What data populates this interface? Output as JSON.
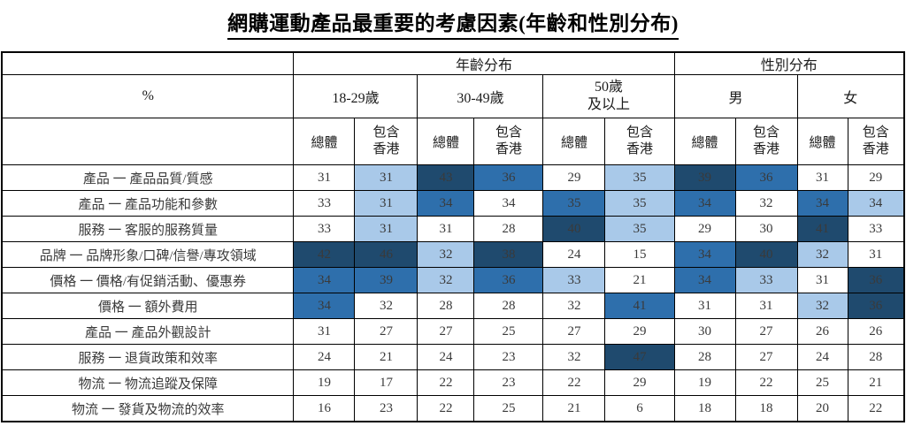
{
  "title": "網購運動產品最重要的考慮因素(年齡和性別分布)",
  "table": {
    "percent_label": "%",
    "group_headers": {
      "age": "年齡分布",
      "gender": "性別分布"
    },
    "age_groups": [
      "18-29歲",
      "30-49歲",
      "50歲\n及以上"
    ],
    "gender_groups": [
      "男",
      "女"
    ],
    "subheaders": {
      "total": "總體",
      "incl_hk": "包含\n香港"
    },
    "colors": {
      "dark": "#1F4A6E",
      "mid": "#2E6FAC",
      "light": "#A9C9E9",
      "white": "#FFFFFF"
    },
    "rows": [
      {
        "label": "產品 一 產品品質/質感",
        "values": [
          31,
          31,
          43,
          36,
          29,
          35,
          39,
          36,
          31,
          29
        ],
        "shades": [
          "w",
          "l",
          "d",
          "m",
          "w",
          "l",
          "d",
          "m",
          "w",
          "w"
        ]
      },
      {
        "label": "產品 一 產品功能和參數",
        "values": [
          33,
          31,
          34,
          34,
          35,
          35,
          34,
          32,
          34,
          34
        ],
        "shades": [
          "w",
          "l",
          "m",
          "w",
          "m",
          "l",
          "m",
          "w",
          "m",
          "l"
        ]
      },
      {
        "label": "服務 一 客服的服務質量",
        "values": [
          33,
          31,
          31,
          28,
          40,
          35,
          29,
          30,
          41,
          33
        ],
        "shades": [
          "w",
          "l",
          "w",
          "w",
          "d",
          "l",
          "w",
          "w",
          "d",
          "w"
        ]
      },
      {
        "label": "品牌 一 品牌形象/口碑/信譽/專攻領域",
        "values": [
          42,
          46,
          32,
          38,
          24,
          15,
          34,
          40,
          32,
          31
        ],
        "shades": [
          "d",
          "d",
          "l",
          "d",
          "w",
          "w",
          "m",
          "d",
          "l",
          "w"
        ]
      },
      {
        "label": "價格 一 價格/有促銷活動、優惠券",
        "values": [
          34,
          39,
          32,
          36,
          33,
          21,
          34,
          33,
          31,
          36
        ],
        "shades": [
          "m",
          "m",
          "l",
          "m",
          "l",
          "w",
          "m",
          "l",
          "w",
          "d"
        ]
      },
      {
        "label": "價格 一 額外費用",
        "values": [
          34,
          32,
          28,
          28,
          32,
          41,
          31,
          31,
          32,
          36
        ],
        "shades": [
          "m",
          "w",
          "w",
          "w",
          "w",
          "m",
          "w",
          "w",
          "l",
          "d"
        ]
      },
      {
        "label": "產品 一 產品外觀設計",
        "values": [
          31,
          27,
          27,
          25,
          27,
          29,
          30,
          27,
          26,
          26
        ],
        "shades": [
          "w",
          "w",
          "w",
          "w",
          "w",
          "w",
          "w",
          "w",
          "w",
          "w"
        ]
      },
      {
        "label": "服務 一 退貨政策和效率",
        "values": [
          24,
          21,
          24,
          23,
          32,
          47,
          28,
          27,
          24,
          28
        ],
        "shades": [
          "w",
          "w",
          "w",
          "w",
          "w",
          "d",
          "w",
          "w",
          "w",
          "w"
        ]
      },
      {
        "label": "物流 一 物流追蹤及保障",
        "values": [
          19,
          17,
          22,
          23,
          22,
          29,
          19,
          22,
          25,
          21
        ],
        "shades": [
          "w",
          "w",
          "w",
          "w",
          "w",
          "w",
          "w",
          "w",
          "w",
          "w"
        ]
      },
      {
        "label": "物流 一 發貨及物流的效率",
        "values": [
          16,
          23,
          22,
          25,
          21,
          6,
          18,
          18,
          20,
          22
        ],
        "shades": [
          "w",
          "w",
          "w",
          "w",
          "w",
          "w",
          "w",
          "w",
          "w",
          "w"
        ]
      }
    ]
  },
  "chart_data": {
    "type": "heatmap",
    "title": "網購運動產品最重要的考慮因素(年齡和性別分布)",
    "unit": "%",
    "column_groups": [
      "年齡分布: 18-29歲",
      "年齡分布: 18-29歲",
      "年齡分布: 30-49歲",
      "年齡分布: 30-49歲",
      "年齡分布: 50歲及以上",
      "年齡分布: 50歲及以上",
      "性別分布: 男",
      "性別分布: 男",
      "性別分布: 女",
      "性別分布: 女"
    ],
    "columns": [
      "18-29歲 總體",
      "18-29歲 包含香港",
      "30-49歲 總體",
      "30-49歲 包含香港",
      "50歲及以上 總體",
      "50歲及以上 包含香港",
      "男 總體",
      "男 包含香港",
      "女 總體",
      "女 包含香港"
    ],
    "rows": [
      "產品 一 產品品質/質感",
      "產品 一 產品功能和參數",
      "服務 一 客服的服務質量",
      "品牌 一 品牌形象/口碑/信譽/專攻領域",
      "價格 一 價格/有促銷活動、優惠券",
      "價格 一 額外費用",
      "產品 一 產品外觀設計",
      "服務 一 退貨政策和效率",
      "物流 一 物流追蹤及保障",
      "物流 一 發貨及物流的效率"
    ],
    "values": [
      [
        31,
        31,
        43,
        36,
        29,
        35,
        39,
        36,
        31,
        29
      ],
      [
        33,
        31,
        34,
        34,
        35,
        35,
        34,
        32,
        34,
        34
      ],
      [
        33,
        31,
        31,
        28,
        40,
        35,
        29,
        30,
        41,
        33
      ],
      [
        42,
        46,
        32,
        38,
        24,
        15,
        34,
        40,
        32,
        31
      ],
      [
        34,
        39,
        32,
        36,
        33,
        21,
        34,
        33,
        31,
        36
      ],
      [
        34,
        32,
        28,
        28,
        32,
        41,
        31,
        31,
        32,
        36
      ],
      [
        31,
        27,
        27,
        25,
        27,
        29,
        30,
        27,
        26,
        26
      ],
      [
        24,
        21,
        24,
        23,
        32,
        47,
        28,
        27,
        24,
        28
      ],
      [
        19,
        17,
        22,
        23,
        22,
        29,
        19,
        22,
        25,
        21
      ],
      [
        16,
        23,
        22,
        25,
        21,
        6,
        18,
        18,
        20,
        22
      ]
    ],
    "highlight_legend": {
      "dark_navy": "#1F4A6E",
      "medium_blue": "#2E6FAC",
      "light_blue": "#A9C9E9",
      "plain": "#FFFFFF"
    }
  }
}
